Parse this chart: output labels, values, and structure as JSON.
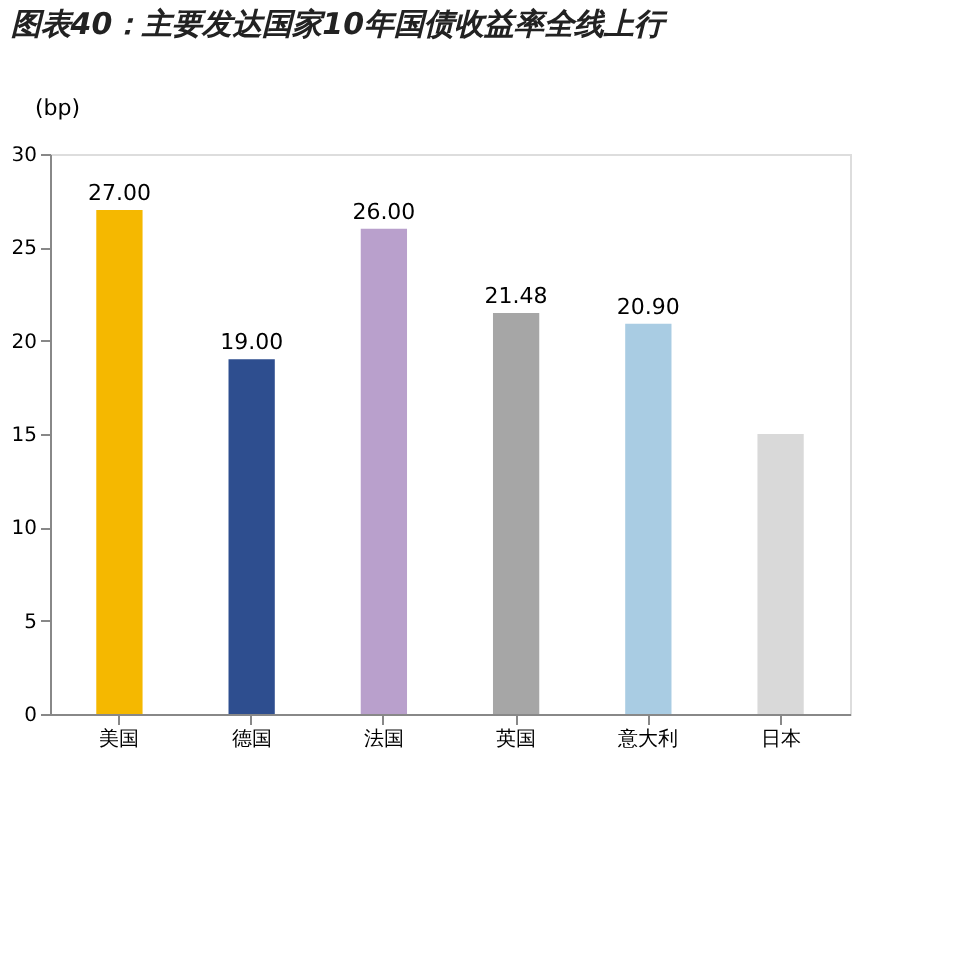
{
  "chart_data": {
    "type": "bar",
    "title": "图表40：主要发达国家10年国债收益率全线上行",
    "ylabel": "(bp)",
    "categories": [
      "美国",
      "德国",
      "法国",
      "英国",
      "意大利",
      "日本"
    ],
    "values": [
      27,
      19,
      26,
      21.48,
      20.9,
      15
    ],
    "colors": [
      "#f5b800",
      "#2e4e8f",
      "#b9a0cc",
      "#a6a6a6",
      "#a9cce3",
      "#d9d9d9"
    ],
    "value_labels": [
      "27.00",
      "19.00",
      "26.00",
      "21.48",
      "20.90",
      null
    ],
    "ylim": [
      0,
      30
    ],
    "yticks": [
      0,
      5,
      10,
      15,
      20,
      25,
      30
    ],
    "grid": false
  }
}
